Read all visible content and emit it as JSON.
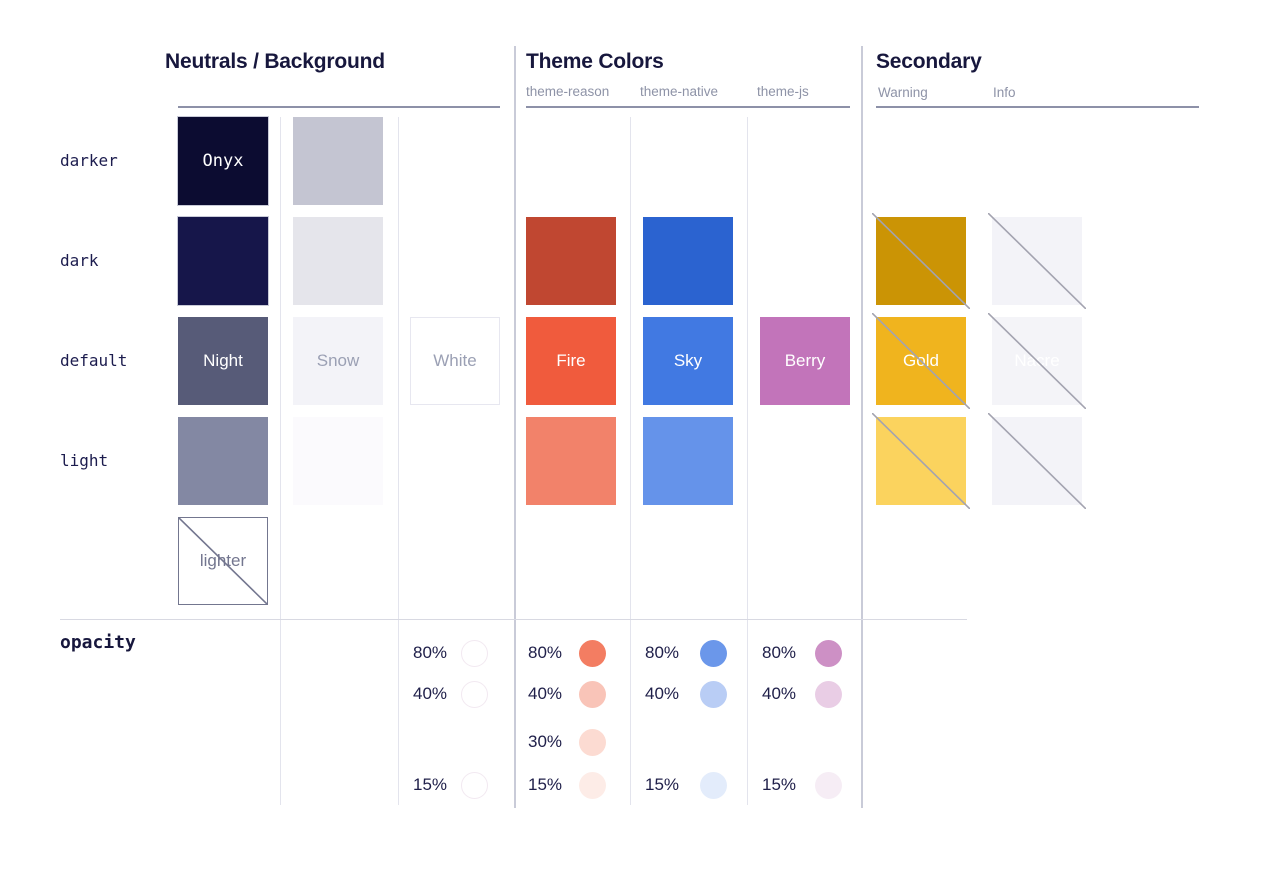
{
  "sections": [
    {
      "title": "Neutrals / Background",
      "subtitles": []
    },
    {
      "title": "Theme Colors",
      "subtitles": [
        {
          "label": "theme-reason"
        },
        {
          "label": "theme-native"
        },
        {
          "label": "theme-js"
        }
      ]
    },
    {
      "title": "Secondary",
      "subtitles": [
        {
          "label": "Warning"
        },
        {
          "label": "Info"
        }
      ]
    }
  ],
  "rows": [
    {
      "label": "darker"
    },
    {
      "label": "dark"
    },
    {
      "label": "default"
    },
    {
      "label": "light"
    }
  ],
  "opacity_section": {
    "label": "opacity"
  },
  "palette": {
    "columns": [
      {
        "name": "neutral-primary",
        "swatches": [
          {
            "row": "darker",
            "color": "#0c0c31",
            "label": "Onyx",
            "label_color": "#ffffff",
            "label_font": "mono",
            "outline": "#c9cbd8"
          },
          {
            "row": "dark",
            "color": "#16164a",
            "outline": "#c9cbd8"
          },
          {
            "row": "default",
            "color": "#575b78",
            "label": "Night",
            "label_color": "#ffffff"
          },
          {
            "row": "light",
            "color": "#8388a3"
          },
          {
            "row": "lighter",
            "color": "#ffffff",
            "label": "lighter",
            "label_color": "#73768f",
            "border": "#73768f",
            "strike": "#73768f",
            "strike_inset": true
          }
        ]
      },
      {
        "name": "neutral-muted",
        "swatches": [
          {
            "row": "darker",
            "color": "#c4c5d2"
          },
          {
            "row": "dark",
            "color": "#e5e5eb"
          },
          {
            "row": "default",
            "color": "#f3f3f8",
            "label": "Snow",
            "label_color": "#9ba0b4"
          },
          {
            "row": "light",
            "color": "#fbfafd"
          }
        ]
      },
      {
        "name": "white",
        "swatches": [
          {
            "row": "default",
            "color": "#ffffff",
            "label": "White",
            "label_color": "#9ba0b4",
            "border": "#e7e7f0"
          }
        ]
      },
      {
        "name": "theme-reason",
        "swatches": [
          {
            "row": "dark",
            "color": "#c04731"
          },
          {
            "row": "default",
            "color": "#f05b3d",
            "label": "Fire",
            "label_color": "#ffffff"
          },
          {
            "row": "light",
            "color": "#f2826a"
          }
        ]
      },
      {
        "name": "theme-native",
        "swatches": [
          {
            "row": "dark",
            "color": "#2b63d0"
          },
          {
            "row": "default",
            "color": "#4179e2",
            "label": "Sky",
            "label_color": "#ffffff"
          },
          {
            "row": "light",
            "color": "#6593ea"
          }
        ]
      },
      {
        "name": "theme-js",
        "swatches": [
          {
            "row": "default",
            "color": "#c274ba",
            "label": "Berry",
            "label_color": "#ffffff"
          }
        ]
      },
      {
        "name": "warning",
        "swatches": [
          {
            "row": "dark",
            "color": "#cb9405",
            "strike": "#a3a3b0"
          },
          {
            "row": "default",
            "color": "#f0b41e",
            "label": "Gold",
            "label_color": "#ffffff",
            "strike": "#a3a3b0"
          },
          {
            "row": "light",
            "color": "#fbd35e",
            "strike": "#a3a3b0"
          }
        ]
      },
      {
        "name": "info",
        "swatches": [
          {
            "row": "dark",
            "color": "#f3f3f8",
            "strike": "#a3a3b0"
          },
          {
            "row": "default",
            "color": "#f4f4f8",
            "label": "Nacre",
            "label_color": "#ffffff",
            "strike": "#a3a3b0"
          },
          {
            "row": "light",
            "color": "#f3f3f8",
            "strike": "#a3a3b0"
          }
        ]
      }
    ]
  },
  "opacity": {
    "columns": [
      {
        "name": "white",
        "dots": [
          {
            "pct": "80%",
            "color": "#ffffff",
            "border": "#f2e9f1"
          },
          {
            "pct": "40%",
            "color": "#ffffff",
            "border": "#f2e9f1"
          },
          {
            "pct": "15%",
            "color": "#ffffff",
            "border": "#f2e9f1"
          }
        ]
      },
      {
        "name": "fire",
        "dots": [
          {
            "pct": "80%",
            "color": "#f37d62"
          },
          {
            "pct": "40%",
            "color": "#f9c4b8"
          },
          {
            "pct": "30%",
            "color": "#fcdbd2"
          },
          {
            "pct": "15%",
            "color": "#fdece7"
          }
        ]
      },
      {
        "name": "sky",
        "dots": [
          {
            "pct": "80%",
            "color": "#6b97ea"
          },
          {
            "pct": "40%",
            "color": "#b9cdf5"
          },
          {
            "pct": "15%",
            "color": "#e3ecfb"
          }
        ]
      },
      {
        "name": "berry",
        "dots": [
          {
            "pct": "80%",
            "color": "#cd90c5"
          },
          {
            "pct": "40%",
            "color": "#e9cde5"
          },
          {
            "pct": "15%",
            "color": "#f6edf5"
          }
        ]
      }
    ]
  }
}
